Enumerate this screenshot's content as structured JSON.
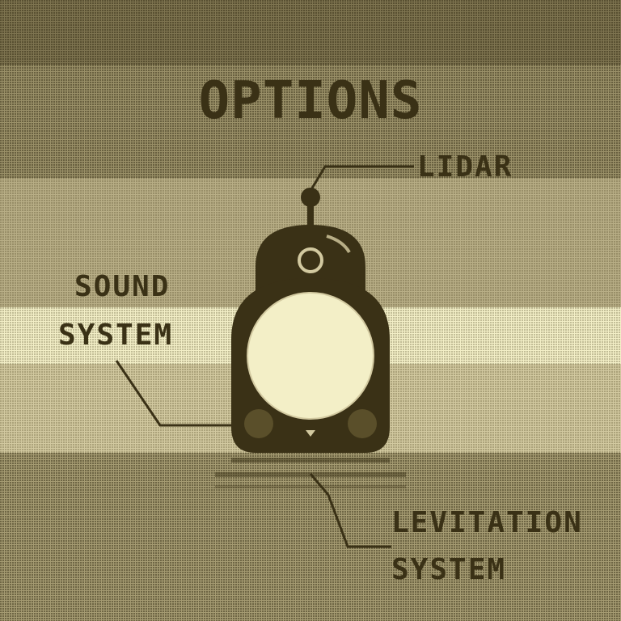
{
  "screen": {
    "title": "OPTIONS"
  },
  "parts": {
    "lidar": "LIDAR",
    "sound_system_line1": "SOUND",
    "sound_system_line2": "SYSTEM",
    "levitation_system_line1": "LEVITATION",
    "levitation_system_line2": "SYSTEM"
  },
  "colors": {
    "dark": "#3a3116",
    "mid": "#8f8560",
    "light": "#f3efc7"
  }
}
